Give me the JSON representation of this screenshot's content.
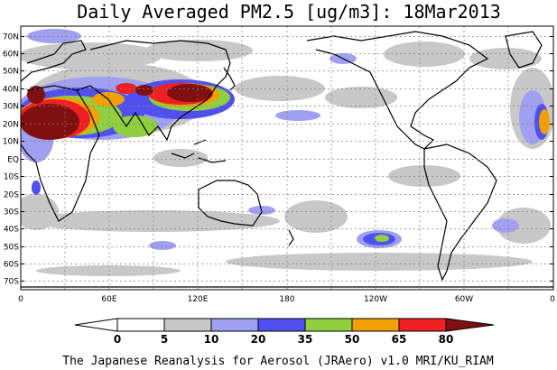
{
  "map": {
    "title": "Daily Averaged PM2.5 [ug/m3]: 18Mar2013",
    "credit": "The Japanese Reanalysis for Aerosol (JRAero) v1.0 MRI/KU_RIAM",
    "lat_labels": [
      "70N",
      "60N",
      "50N",
      "40N",
      "30N",
      "20N",
      "10N",
      "EQ",
      "10S",
      "20S",
      "30S",
      "40S",
      "50S",
      "60S",
      "70S"
    ],
    "lon_labels": [
      "0",
      "60E",
      "120E",
      "180",
      "120W",
      "60W",
      "0"
    ]
  },
  "colorbar": {
    "levels": [
      "0",
      "5",
      "10",
      "20",
      "35",
      "50",
      "65",
      "80"
    ],
    "colors": [
      "#ffffff",
      "#c8c8c8",
      "#a0a0f0",
      "#5050f0",
      "#90d040",
      "#f0a000",
      "#f02020",
      "#801010"
    ]
  }
}
